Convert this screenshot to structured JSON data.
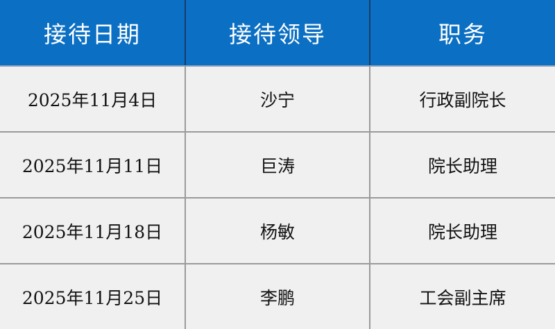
{
  "table": {
    "headers": [
      "接待日期",
      "接待领导",
      "职务"
    ],
    "rows": [
      [
        "2025年11月4日",
        "沙宁",
        "行政副院长"
      ],
      [
        "2025年11月11日",
        "巨涛",
        "院长助理"
      ],
      [
        "2025年11月18日",
        "杨敏",
        "院长助理"
      ],
      [
        "2025年11月25日",
        "李鹏",
        "工会副主席"
      ]
    ]
  },
  "colors": {
    "header_bg": "#0b6fc3",
    "header_text": "#ffffff",
    "row_bg": "#f0f0f0"
  }
}
